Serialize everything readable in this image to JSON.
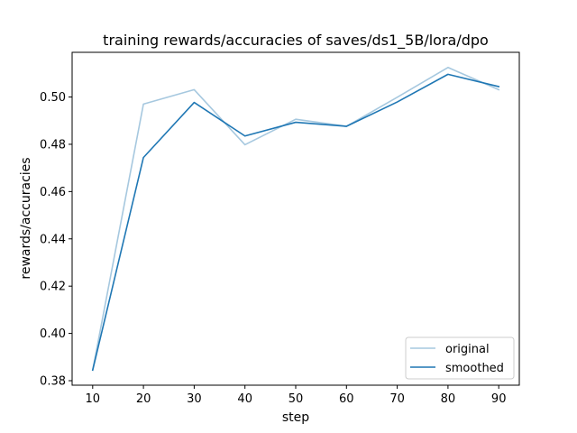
{
  "chart_data": {
    "type": "line",
    "title": "training rewards/accuracies of saves/ds1_5B/lora/dpo",
    "xlabel": "step",
    "ylabel": "rewards/accuracies",
    "x": [
      10,
      20,
      30,
      40,
      50,
      60,
      70,
      80,
      90
    ],
    "series": [
      {
        "name": "original",
        "color": "#a6c8df",
        "values": [
          0.3845,
          0.497,
          0.5031,
          0.4798,
          0.4906,
          0.4876,
          0.4999,
          0.5125,
          0.5031
        ]
      },
      {
        "name": "smoothed",
        "color": "#1f77b4",
        "values": [
          0.3845,
          0.4744,
          0.4977,
          0.4835,
          0.4893,
          0.4876,
          0.4979,
          0.5096,
          0.5044
        ]
      }
    ],
    "xlim": [
      5.95,
      94.05
    ],
    "ylim": [
      0.3781,
      0.5189
    ],
    "xticks": [
      "10",
      "20",
      "30",
      "40",
      "50",
      "60",
      "70",
      "80",
      "90"
    ],
    "yticks": [
      "0.38",
      "0.40",
      "0.42",
      "0.44",
      "0.46",
      "0.48",
      "0.50"
    ],
    "legend_position": "lower right",
    "grid": false
  }
}
